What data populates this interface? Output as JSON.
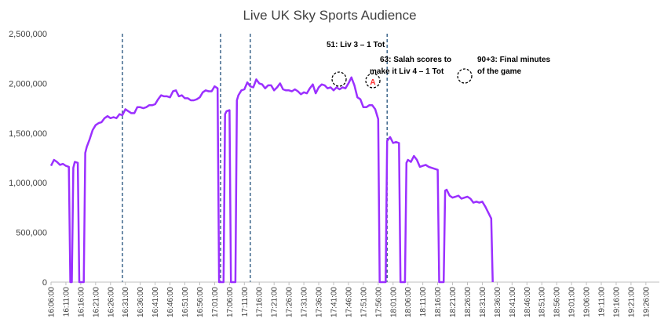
{
  "chart_data": {
    "type": "line",
    "title": "Live UK Sky Sports Audience",
    "xlabel": "",
    "ylabel": "",
    "ylim": [
      0,
      2500000
    ],
    "y_ticks": [
      0,
      500000,
      1000000,
      1500000,
      2000000,
      2500000
    ],
    "y_tick_labels": [
      "0",
      "500,000",
      "1,000,000",
      "1,500,000",
      "2,000,000",
      "2,500,000"
    ],
    "x_tick_labels": [
      "16:06:00",
      "16:11:00",
      "16:16:00",
      "16:21:00",
      "16:26:00",
      "16:31:00",
      "16:36:00",
      "16:41:00",
      "16:46:00",
      "16:51:00",
      "16:56:00",
      "17:01:00",
      "17:06:00",
      "17:11:00",
      "17:16:00",
      "17:21:00",
      "17:26:00",
      "17:31:00",
      "17:36:00",
      "17:41:00",
      "17:46:00",
      "17:51:00",
      "17:56:00",
      "18:01:00",
      "18:06:00",
      "18:11:00",
      "18:16:00",
      "18:21:00",
      "18:26:00",
      "18:31:00",
      "18:36:00",
      "18:41:00",
      "18:46:00",
      "18:51:00",
      "18:56:00",
      "19:01:00",
      "19:06:00",
      "19:11:00",
      "19:16:00",
      "19:21:00",
      "19:26:00"
    ],
    "grid": false,
    "line_color": "#9b30ff",
    "vline_color": "#1f4e79",
    "series": [
      {
        "points": [
          [
            "16:06",
            1170000
          ],
          [
            "16:07",
            1230000
          ],
          [
            "16:08",
            1210000
          ],
          [
            "16:09",
            1180000
          ],
          [
            "16:10",
            1190000
          ],
          [
            "16:11",
            1170000
          ],
          [
            "16:12",
            1160000
          ],
          [
            "16:12:30",
            0
          ],
          [
            "16:13",
            0
          ],
          [
            "16:13:30",
            1150000
          ],
          [
            "16:14",
            1210000
          ],
          [
            "16:15",
            1200000
          ],
          [
            "16:15:30",
            0
          ],
          [
            "16:17",
            0
          ],
          [
            "16:17:30",
            1300000
          ],
          [
            "16:18",
            1360000
          ],
          [
            "16:19",
            1440000
          ],
          [
            "16:20",
            1530000
          ],
          [
            "16:21",
            1580000
          ],
          [
            "16:22",
            1600000
          ],
          [
            "16:23",
            1610000
          ],
          [
            "16:24",
            1650000
          ],
          [
            "16:25",
            1670000
          ],
          [
            "16:26",
            1650000
          ],
          [
            "16:27",
            1660000
          ],
          [
            "16:28",
            1650000
          ],
          [
            "16:29",
            1690000
          ],
          [
            "16:30",
            1680000
          ],
          [
            "16:31",
            1740000
          ],
          [
            "16:32",
            1720000
          ],
          [
            "16:33",
            1700000
          ],
          [
            "16:34",
            1700000
          ],
          [
            "16:35",
            1760000
          ],
          [
            "16:36",
            1760000
          ],
          [
            "16:37",
            1750000
          ],
          [
            "16:38",
            1760000
          ],
          [
            "16:39",
            1780000
          ],
          [
            "16:40",
            1780000
          ],
          [
            "16:41",
            1790000
          ],
          [
            "16:42",
            1840000
          ],
          [
            "16:43",
            1880000
          ],
          [
            "16:44",
            1870000
          ],
          [
            "16:45",
            1870000
          ],
          [
            "16:46",
            1860000
          ],
          [
            "16:47",
            1920000
          ],
          [
            "16:48",
            1930000
          ],
          [
            "16:49",
            1870000
          ],
          [
            "16:50",
            1880000
          ],
          [
            "16:51",
            1850000
          ],
          [
            "16:52",
            1850000
          ],
          [
            "16:53",
            1830000
          ],
          [
            "16:54",
            1830000
          ],
          [
            "16:55",
            1840000
          ],
          [
            "16:56",
            1860000
          ],
          [
            "16:57",
            1910000
          ],
          [
            "16:58",
            1930000
          ],
          [
            "16:59",
            1920000
          ],
          [
            "17:00",
            1920000
          ],
          [
            "17:01",
            1970000
          ],
          [
            "17:02",
            1950000
          ],
          [
            "17:02:30",
            0
          ],
          [
            "17:04",
            0
          ],
          [
            "17:04:30",
            1690000
          ],
          [
            "17:05",
            1720000
          ],
          [
            "17:06",
            1730000
          ],
          [
            "17:06:30",
            0
          ],
          [
            "17:08",
            0
          ],
          [
            "17:08:30",
            1830000
          ],
          [
            "17:09",
            1880000
          ],
          [
            "17:10",
            1930000
          ],
          [
            "17:11",
            1940000
          ],
          [
            "17:12",
            2010000
          ],
          [
            "17:13",
            1970000
          ],
          [
            "17:14",
            1960000
          ],
          [
            "17:15",
            2040000
          ],
          [
            "17:16",
            2000000
          ],
          [
            "17:17",
            1990000
          ],
          [
            "17:18",
            1950000
          ],
          [
            "17:19",
            1980000
          ],
          [
            "17:20",
            1980000
          ],
          [
            "17:21",
            1930000
          ],
          [
            "17:22",
            1960000
          ],
          [
            "17:23",
            2000000
          ],
          [
            "17:24",
            1940000
          ],
          [
            "17:25",
            1930000
          ],
          [
            "17:26",
            1930000
          ],
          [
            "17:27",
            1920000
          ],
          [
            "17:28",
            1940000
          ],
          [
            "17:29",
            1920000
          ],
          [
            "17:30",
            1890000
          ],
          [
            "17:31",
            1910000
          ],
          [
            "17:32",
            1900000
          ],
          [
            "17:33",
            1950000
          ],
          [
            "17:34",
            1990000
          ],
          [
            "17:35",
            1900000
          ],
          [
            "17:36",
            1960000
          ],
          [
            "17:37",
            1990000
          ],
          [
            "17:38",
            1980000
          ],
          [
            "17:39",
            1950000
          ],
          [
            "17:40",
            1960000
          ],
          [
            "17:41",
            1930000
          ],
          [
            "17:42",
            1960000
          ],
          [
            "17:43",
            1940000
          ],
          [
            "17:44",
            1960000
          ],
          [
            "17:45",
            1950000
          ],
          [
            "17:46",
            2000000
          ],
          [
            "17:47",
            2060000
          ],
          [
            "17:48",
            1980000
          ],
          [
            "17:49",
            1860000
          ],
          [
            "17:50",
            1840000
          ],
          [
            "17:51",
            1760000
          ],
          [
            "17:52",
            1760000
          ],
          [
            "17:53",
            1780000
          ],
          [
            "17:54",
            1780000
          ],
          [
            "17:55",
            1740000
          ],
          [
            "17:56",
            1640000
          ],
          [
            "17:56:30",
            0
          ],
          [
            "17:58:30",
            0
          ],
          [
            "17:59",
            1420000
          ],
          [
            "18:00",
            1460000
          ],
          [
            "18:01",
            1400000
          ],
          [
            "18:02",
            1410000
          ],
          [
            "18:03",
            1400000
          ],
          [
            "18:03:30",
            0
          ],
          [
            "18:05",
            0
          ],
          [
            "18:05:30",
            1200000
          ],
          [
            "18:06",
            1230000
          ],
          [
            "18:07",
            1210000
          ],
          [
            "18:08",
            1270000
          ],
          [
            "18:09",
            1230000
          ],
          [
            "18:10",
            1160000
          ],
          [
            "18:11",
            1170000
          ],
          [
            "18:12",
            1180000
          ],
          [
            "18:13",
            1160000
          ],
          [
            "18:14",
            1150000
          ],
          [
            "18:15",
            1140000
          ],
          [
            "18:16",
            1130000
          ],
          [
            "18:16:30",
            0
          ],
          [
            "18:18",
            0
          ],
          [
            "18:18:30",
            920000
          ],
          [
            "18:19",
            930000
          ],
          [
            "18:20",
            870000
          ],
          [
            "18:21",
            850000
          ],
          [
            "18:22",
            860000
          ],
          [
            "18:23",
            870000
          ],
          [
            "18:24",
            840000
          ],
          [
            "18:25",
            850000
          ],
          [
            "18:26",
            860000
          ],
          [
            "18:27",
            840000
          ],
          [
            "18:28",
            800000
          ],
          [
            "18:29",
            810000
          ],
          [
            "18:30",
            800000
          ],
          [
            "18:31",
            810000
          ],
          [
            "18:32",
            760000
          ],
          [
            "18:33",
            700000
          ],
          [
            "18:34",
            640000
          ],
          [
            "18:34:30",
            0
          ]
        ]
      }
    ],
    "vertical_markers": [
      "16:30",
      "17:03",
      "17:13",
      "17:59"
    ],
    "annotations": [
      {
        "lines": [
          "51: Liv 3 – 1 Tot"
        ]
      },
      {
        "lines": [
          "63: Salah scores to",
          "make it  Liv 4 – 1 Tot"
        ]
      },
      {
        "lines": [
          "90+3: Final minutes",
          "of the game"
        ]
      }
    ]
  }
}
